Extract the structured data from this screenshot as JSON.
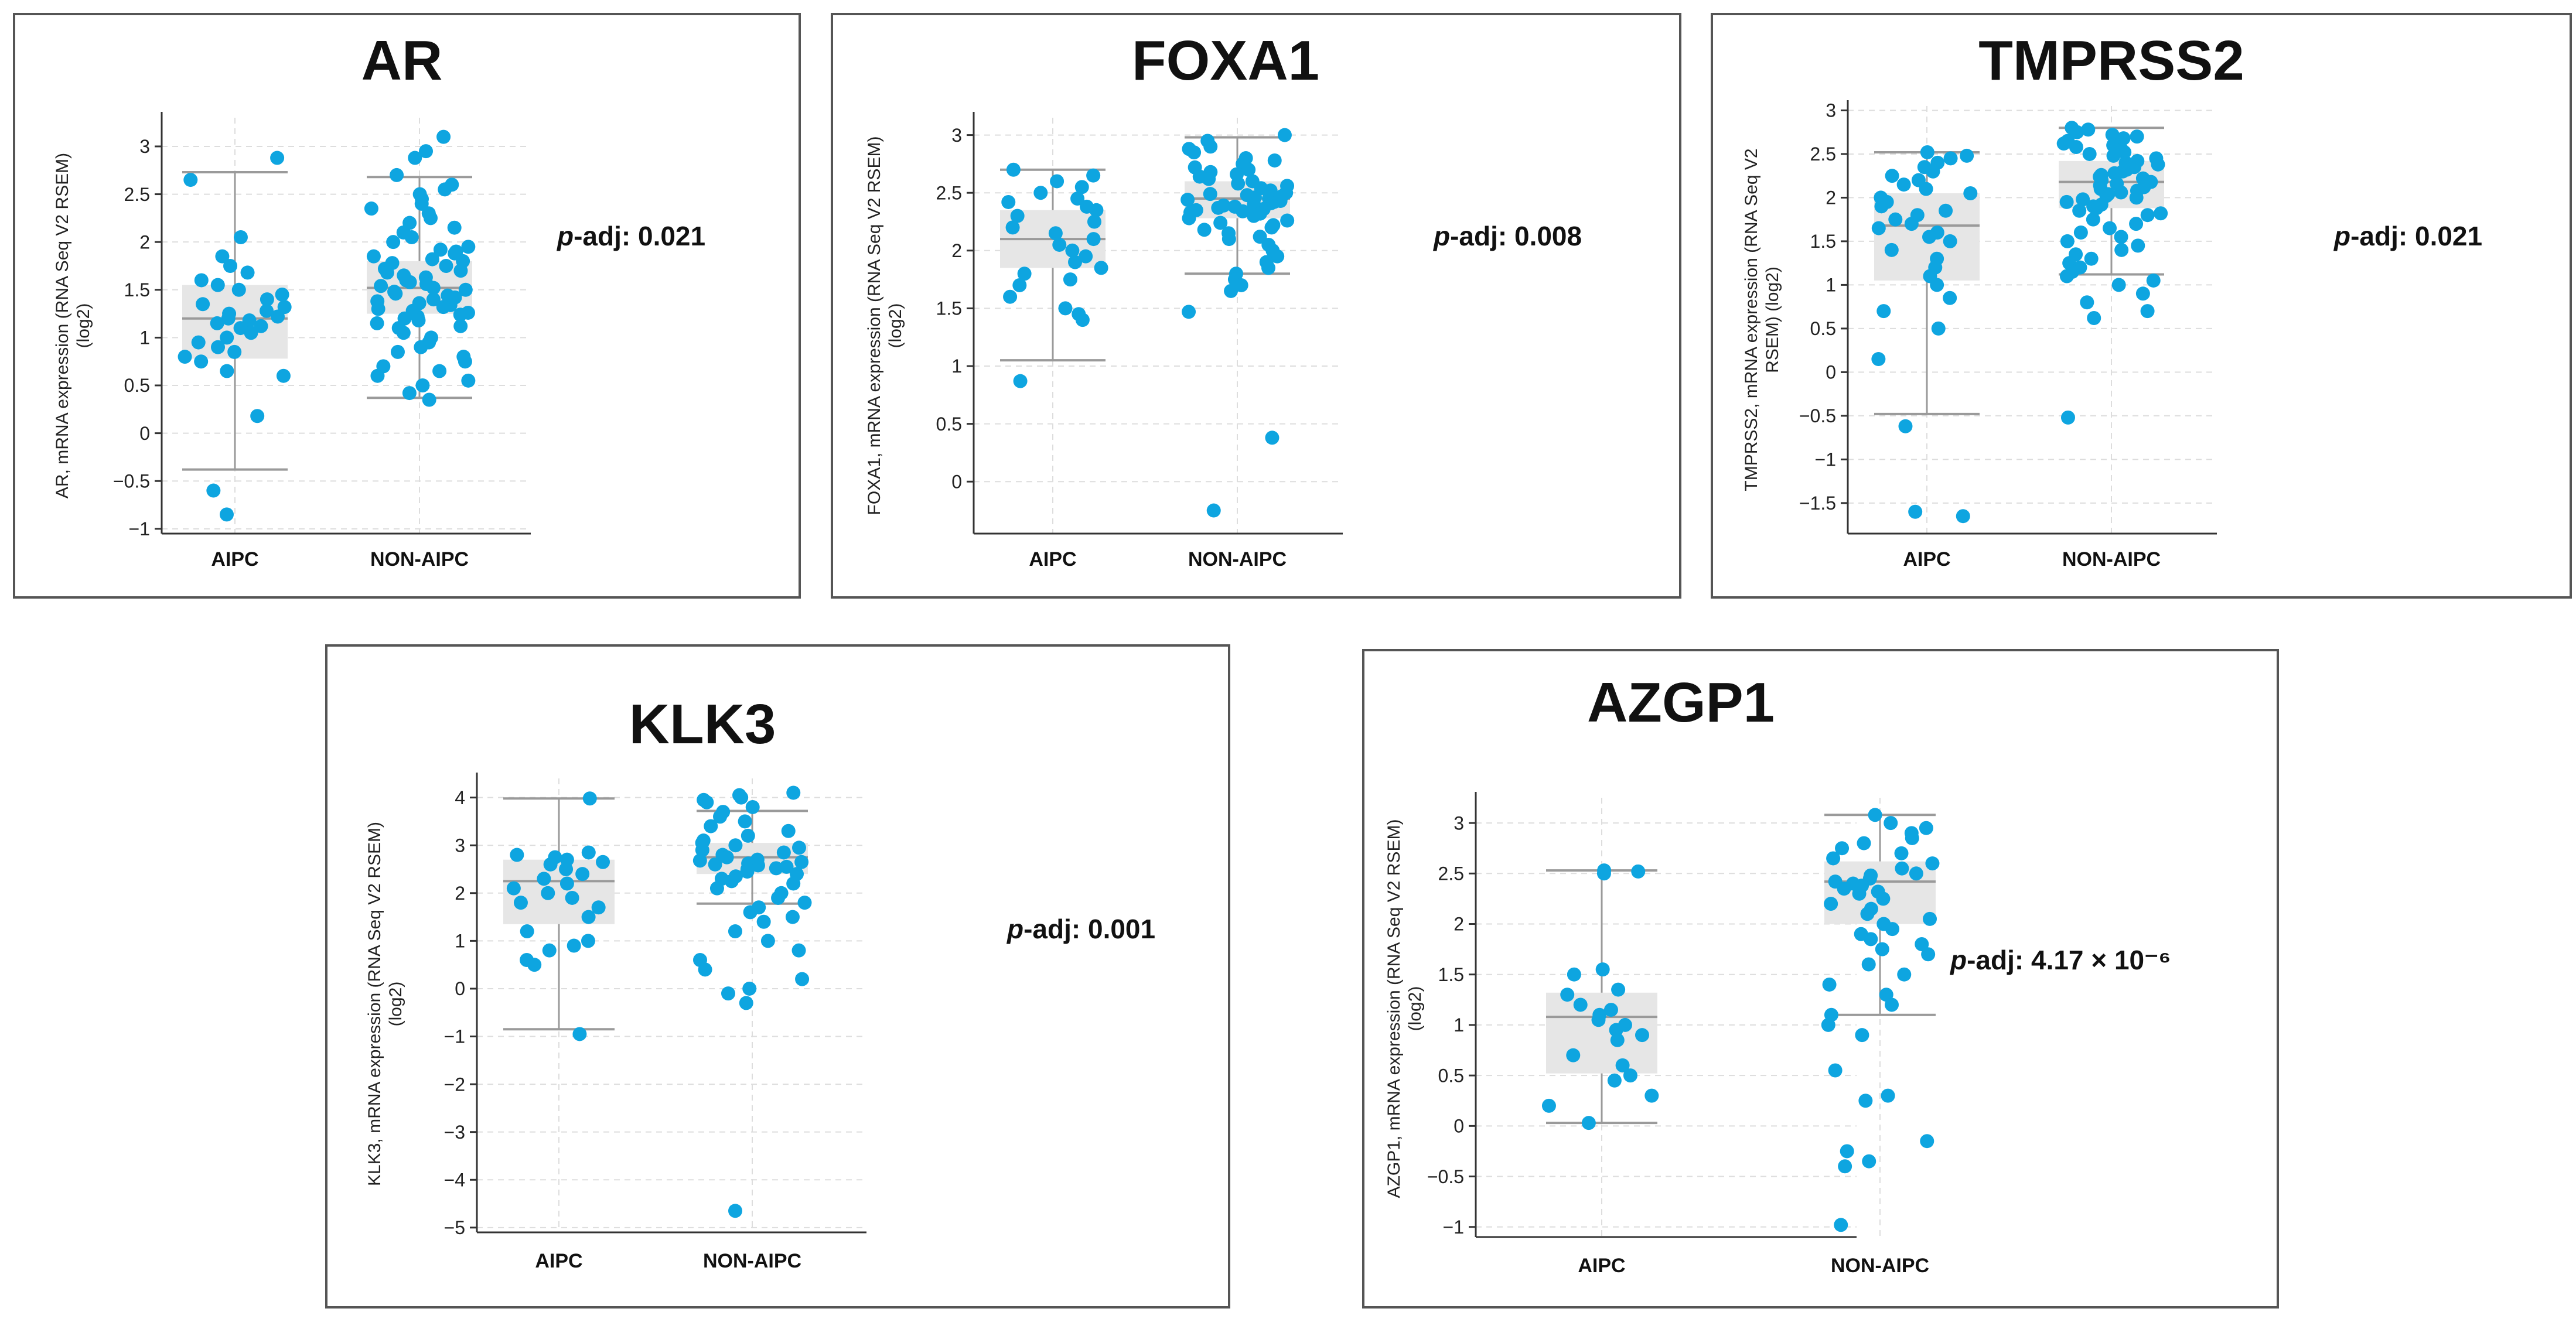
{
  "chart_data": [
    {
      "type": "scatter",
      "title": "AR",
      "ylabel": "AR, mRNA expression (RNA Seq V2 RSEM) (log2)",
      "ylabel_lines": [
        "AR, mRNA expression (RNA Seq V2 RSEM)",
        "(log2)"
      ],
      "categories": [
        "AIPC",
        "NON-AIPC"
      ],
      "ylim": [
        -1.05,
        3.3
      ],
      "yticks": [
        -1,
        -0.5,
        0,
        0.5,
        1,
        1.5,
        2,
        2.5,
        3
      ],
      "ytick_labels": [
        "−1",
        "−0.5",
        "0",
        "0.5",
        "1",
        "1.5",
        "2",
        "2.5",
        "3"
      ],
      "p_adj_label": "p",
      "p_adj_text": "-adj: 0.021",
      "boxes": [
        {
          "category": "AIPC",
          "whisker_low": -0.38,
          "q1": 0.78,
          "median": 1.2,
          "q3": 1.55,
          "whisker_high": 2.73
        },
        {
          "category": "NON-AIPC",
          "whisker_low": 0.37,
          "q1": 1.25,
          "median": 1.52,
          "q3": 1.8,
          "whisker_high": 2.68
        }
      ],
      "series": [
        {
          "category": "AIPC",
          "values": [
            2.88,
            2.65,
            2.05,
            1.85,
            1.75,
            1.68,
            1.6,
            1.55,
            1.5,
            1.45,
            1.4,
            1.35,
            1.32,
            1.28,
            1.25,
            1.22,
            1.2,
            1.18,
            1.15,
            1.12,
            1.1,
            1.05,
            1.0,
            0.95,
            0.9,
            0.85,
            0.8,
            0.75,
            0.65,
            0.6,
            0.18,
            -0.6,
            -0.85
          ]
        },
        {
          "category": "NON-AIPC",
          "values": [
            3.1,
            2.95,
            2.88,
            2.7,
            2.6,
            2.55,
            2.5,
            2.45,
            2.4,
            2.35,
            2.3,
            2.25,
            2.2,
            2.15,
            2.1,
            2.05,
            2.0,
            1.95,
            1.92,
            1.9,
            1.88,
            1.85,
            1.82,
            1.8,
            1.78,
            1.75,
            1.72,
            1.7,
            1.68,
            1.65,
            1.63,
            1.6,
            1.58,
            1.56,
            1.54,
            1.52,
            1.5,
            1.48,
            1.46,
            1.44,
            1.42,
            1.4,
            1.38,
            1.36,
            1.34,
            1.32,
            1.3,
            1.28,
            1.26,
            1.24,
            1.22,
            1.2,
            1.18,
            1.15,
            1.12,
            1.1,
            1.05,
            1.0,
            0.95,
            0.9,
            0.85,
            0.8,
            0.75,
            0.7,
            0.65,
            0.6,
            0.55,
            0.5,
            0.42,
            0.35
          ]
        }
      ]
    },
    {
      "type": "scatter",
      "title": "FOXA1",
      "ylabel": "FOXA1, mRNA expression (RNA Seq V2 RSEM) (log2)",
      "ylabel_lines": [
        "FOXA1, mRNA expression (RNA Seq V2 RSEM)",
        "(log2)"
      ],
      "categories": [
        "AIPC",
        "NON-AIPC"
      ],
      "ylim": [
        -0.45,
        3.15
      ],
      "yticks": [
        0,
        0.5,
        1,
        1.5,
        2,
        2.5,
        3
      ],
      "ytick_labels": [
        "0",
        "0.5",
        "1",
        "1.5",
        "2",
        "2.5",
        "3"
      ],
      "p_adj_label": "p",
      "p_adj_text": "-adj: 0.008",
      "boxes": [
        {
          "category": "AIPC",
          "whisker_low": 1.05,
          "q1": 1.85,
          "median": 2.1,
          "q3": 2.35,
          "whisker_high": 2.7
        },
        {
          "category": "NON-AIPC",
          "whisker_low": 1.8,
          "q1": 2.28,
          "median": 2.45,
          "q3": 2.6,
          "whisker_high": 2.98
        }
      ],
      "series": [
        {
          "category": "AIPC",
          "values": [
            2.7,
            2.65,
            2.6,
            2.55,
            2.5,
            2.45,
            2.42,
            2.38,
            2.35,
            2.3,
            2.25,
            2.2,
            2.15,
            2.1,
            2.05,
            2.0,
            1.95,
            1.9,
            1.85,
            1.8,
            1.75,
            1.7,
            1.6,
            1.5,
            1.45,
            1.4,
            0.87
          ]
        },
        {
          "category": "NON-AIPC",
          "values": [
            3.0,
            2.95,
            2.9,
            2.88,
            2.85,
            2.8,
            2.78,
            2.75,
            2.72,
            2.7,
            2.68,
            2.66,
            2.64,
            2.62,
            2.6,
            2.58,
            2.56,
            2.54,
            2.52,
            2.5,
            2.49,
            2.48,
            2.47,
            2.46,
            2.45,
            2.44,
            2.43,
            2.42,
            2.41,
            2.4,
            2.39,
            2.38,
            2.37,
            2.36,
            2.35,
            2.34,
            2.33,
            2.32,
            2.3,
            2.28,
            2.26,
            2.24,
            2.22,
            2.2,
            2.18,
            2.15,
            2.12,
            2.1,
            2.05,
            2.0,
            1.95,
            1.9,
            1.85,
            1.8,
            1.75,
            1.7,
            1.65,
            1.47,
            0.38,
            -0.25
          ]
        }
      ]
    },
    {
      "type": "scatter",
      "title": "TMPRSS2",
      "ylabel": "TMPRSS2, mRNA expression (RNA Seq V2 RSEM) (log2)",
      "ylabel_lines": [
        "TMPRSS2, mRNA expression (RNA Seq V2",
        "RSEM) (log2)"
      ],
      "categories": [
        "AIPC",
        "NON-AIPC"
      ],
      "ylim": [
        -1.85,
        3.05
      ],
      "yticks": [
        -1.5,
        -1,
        -0.5,
        0,
        0.5,
        1,
        1.5,
        2,
        2.5,
        3
      ],
      "ytick_labels": [
        "−1.5",
        "−1",
        "−0.5",
        "0",
        "0.5",
        "1",
        "1.5",
        "2",
        "2.5",
        "3"
      ],
      "p_adj_label": "p",
      "p_adj_text": "-adj: 0.021",
      "boxes": [
        {
          "category": "AIPC",
          "whisker_low": -0.48,
          "q1": 1.05,
          "median": 1.68,
          "q3": 2.05,
          "whisker_high": 2.52
        },
        {
          "category": "NON-AIPC",
          "whisker_low": 1.12,
          "q1": 1.88,
          "median": 2.18,
          "q3": 2.42,
          "whisker_high": 2.8
        }
      ],
      "series": [
        {
          "category": "AIPC",
          "values": [
            2.52,
            2.48,
            2.45,
            2.4,
            2.35,
            2.3,
            2.25,
            2.2,
            2.15,
            2.1,
            2.05,
            2.0,
            1.95,
            1.9,
            1.85,
            1.8,
            1.75,
            1.7,
            1.65,
            1.6,
            1.55,
            1.5,
            1.4,
            1.3,
            1.2,
            1.1,
            1.0,
            0.85,
            0.7,
            0.5,
            0.15,
            -0.62,
            -1.6,
            -1.65
          ]
        },
        {
          "category": "NON-AIPC",
          "values": [
            2.8,
            2.78,
            2.75,
            2.72,
            2.7,
            2.68,
            2.65,
            2.62,
            2.6,
            2.58,
            2.55,
            2.52,
            2.5,
            2.48,
            2.45,
            2.42,
            2.4,
            2.38,
            2.35,
            2.32,
            2.3,
            2.28,
            2.26,
            2.24,
            2.22,
            2.2,
            2.18,
            2.16,
            2.14,
            2.12,
            2.1,
            2.08,
            2.06,
            2.04,
            2.02,
            2.0,
            1.98,
            1.95,
            1.92,
            1.9,
            1.88,
            1.85,
            1.82,
            1.8,
            1.75,
            1.7,
            1.65,
            1.6,
            1.55,
            1.5,
            1.45,
            1.4,
            1.35,
            1.3,
            1.25,
            1.2,
            1.15,
            1.1,
            1.05,
            1.0,
            0.9,
            0.8,
            0.7,
            0.62,
            -0.52
          ]
        }
      ]
    },
    {
      "type": "scatter",
      "title": "KLK3",
      "ylabel": "KLK3, mRNA expression (RNA Seq V2 RSEM) (log2)",
      "ylabel_lines": [
        "KLK3, mRNA expression (RNA Seq V2 RSEM)",
        "(log2)"
      ],
      "categories": [
        "AIPC",
        "NON-AIPC"
      ],
      "ylim": [
        -5.1,
        4.4
      ],
      "yticks": [
        -5,
        -4,
        -3,
        -2,
        -1,
        0,
        1,
        2,
        3,
        4
      ],
      "ytick_labels": [
        "−5",
        "−4",
        "−3",
        "−2",
        "−1",
        "0",
        "1",
        "2",
        "3",
        "4"
      ],
      "p_adj_label": "p",
      "p_adj_text": "-adj: 0.001",
      "boxes": [
        {
          "category": "AIPC",
          "whisker_low": -0.85,
          "q1": 1.35,
          "median": 2.25,
          "q3": 2.7,
          "whisker_high": 3.98
        },
        {
          "category": "NON-AIPC",
          "whisker_low": 1.78,
          "q1": 2.4,
          "median": 2.75,
          "q3": 3.05,
          "whisker_high": 3.72
        }
      ],
      "series": [
        {
          "category": "AIPC",
          "values": [
            3.98,
            2.85,
            2.8,
            2.75,
            2.7,
            2.65,
            2.6,
            2.5,
            2.4,
            2.3,
            2.2,
            2.1,
            2.0,
            1.9,
            1.8,
            1.7,
            1.5,
            1.2,
            1.0,
            0.9,
            0.8,
            0.6,
            0.5,
            -0.95
          ]
        },
        {
          "category": "NON-AIPC",
          "values": [
            4.1,
            4.05,
            4.0,
            3.95,
            3.9,
            3.8,
            3.7,
            3.6,
            3.5,
            3.4,
            3.3,
            3.2,
            3.1,
            3.05,
            3.0,
            2.95,
            2.9,
            2.85,
            2.8,
            2.75,
            2.7,
            2.68,
            2.65,
            2.62,
            2.6,
            2.58,
            2.55,
            2.52,
            2.5,
            2.45,
            2.4,
            2.35,
            2.3,
            2.25,
            2.2,
            2.1,
            2.0,
            1.9,
            1.8,
            1.7,
            1.6,
            1.5,
            1.4,
            1.2,
            1.0,
            0.8,
            0.6,
            0.4,
            0.2,
            0.0,
            -0.1,
            -0.3,
            -4.65
          ]
        }
      ]
    },
    {
      "type": "scatter",
      "title": "AZGP1",
      "ylabel": "AZGP1, mRNA expression (RNA Seq V2 RSEM) (log2)",
      "ylabel_lines": [
        "AZGP1, mRNA expression (RNA Seq V2 RSEM)",
        "(log2)"
      ],
      "categories": [
        "AIPC",
        "NON-AIPC"
      ],
      "ylim": [
        -1.1,
        3.25
      ],
      "yticks": [
        -1,
        -0.5,
        0,
        0.5,
        1,
        1.5,
        2,
        2.5,
        3
      ],
      "ytick_labels": [
        "−1",
        "−0.5",
        "0",
        "0.5",
        "1",
        "1.5",
        "2",
        "2.5",
        "3"
      ],
      "p_adj_label": "p",
      "p_adj_text": "-adj: 4.17 × 10⁻⁶",
      "boxes": [
        {
          "category": "AIPC",
          "whisker_low": 0.03,
          "q1": 0.52,
          "median": 1.08,
          "q3": 1.32,
          "whisker_high": 2.53
        },
        {
          "category": "NON-AIPC",
          "whisker_low": 1.1,
          "q1": 2.0,
          "median": 2.42,
          "q3": 2.62,
          "whisker_high": 3.08
        }
      ],
      "series": [
        {
          "category": "AIPC",
          "values": [
            2.53,
            2.52,
            2.5,
            1.55,
            1.5,
            1.35,
            1.3,
            1.2,
            1.15,
            1.1,
            1.05,
            1.0,
            0.95,
            0.9,
            0.85,
            0.7,
            0.6,
            0.5,
            0.45,
            0.3,
            0.2,
            0.03
          ]
        },
        {
          "category": "NON-AIPC",
          "values": [
            3.08,
            3.0,
            2.95,
            2.9,
            2.85,
            2.8,
            2.75,
            2.7,
            2.65,
            2.6,
            2.55,
            2.5,
            2.48,
            2.45,
            2.42,
            2.4,
            2.38,
            2.35,
            2.32,
            2.3,
            2.25,
            2.2,
            2.15,
            2.1,
            2.05,
            2.0,
            1.95,
            1.9,
            1.85,
            1.8,
            1.75,
            1.7,
            1.6,
            1.5,
            1.4,
            1.3,
            1.2,
            1.1,
            1.0,
            0.9,
            0.55,
            0.3,
            0.25,
            -0.15,
            -0.25,
            -0.35,
            -0.4,
            -0.98
          ]
        }
      ]
    }
  ],
  "colors": {
    "dot": "#0ea5e0",
    "box": "#e6e6e6",
    "whisker": "#9a9a9a",
    "grid": "#dddddd",
    "axis": "#333333"
  }
}
